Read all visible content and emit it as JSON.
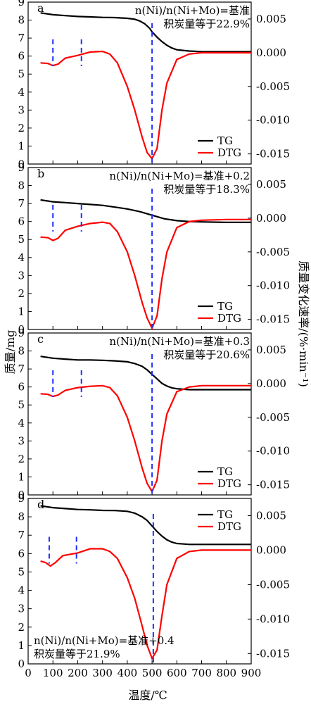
{
  "figure": {
    "xlabel": "温度/℃",
    "ylabel_left": "质量/mg",
    "ylabel_right": "质量变化速率/(%·min⁻¹)",
    "colors": {
      "tg": "#000000",
      "dtg": "#ff0000",
      "markers": "#1f2fff"
    }
  },
  "chart_data": [
    {
      "type": "line",
      "panel": "a",
      "annotation": [
        "n(Ni)/n(Ni+Mo)=基准",
        "积炭量等于22.9%"
      ],
      "annotation_position": "top-right",
      "legend": [
        "TG",
        "DTG"
      ],
      "legend_position": "bottom-right",
      "xlim": [
        0,
        900
      ],
      "ylim_left": [
        0,
        9
      ],
      "ylim_right": [
        -0.0165,
        0.0075
      ],
      "x_ticks": [
        0,
        100,
        200,
        300,
        400,
        500,
        600,
        700,
        800,
        900
      ],
      "y_ticks_left": [
        0,
        1,
        2,
        3,
        4,
        5,
        6,
        7,
        8,
        9
      ],
      "y_ticks_right": [
        "0.005",
        "0.000",
        "-0.005",
        "-0.010",
        "-0.015"
      ],
      "markers_x": [
        100,
        215,
        500
      ],
      "series": [
        {
          "name": "TG",
          "axis": "left",
          "x": [
            50,
            100,
            150,
            200,
            250,
            300,
            350,
            400,
            430,
            450,
            470,
            490,
            500,
            520,
            540,
            560,
            580,
            600,
            650,
            700,
            800,
            900
          ],
          "y": [
            8.4,
            8.3,
            8.25,
            8.2,
            8.18,
            8.15,
            8.14,
            8.1,
            8.05,
            7.95,
            7.8,
            7.55,
            7.35,
            7.05,
            6.8,
            6.6,
            6.45,
            6.35,
            6.28,
            6.25,
            6.25,
            6.25
          ]
        },
        {
          "name": "DTG",
          "axis": "right",
          "x": [
            50,
            80,
            100,
            120,
            150,
            200,
            250,
            300,
            330,
            360,
            400,
            430,
            460,
            480,
            500,
            520,
            540,
            560,
            600,
            650,
            700,
            800,
            900
          ],
          "y": [
            -0.0015,
            -0.0016,
            -0.0019,
            -0.0017,
            -0.0008,
            -0.0004,
            0.0001,
            0.0002,
            -0.0002,
            -0.0015,
            -0.005,
            -0.0085,
            -0.0125,
            -0.0148,
            -0.0157,
            -0.0142,
            -0.0085,
            -0.0045,
            -0.001,
            -0.0002,
            0.0,
            0.0,
            0.0
          ]
        }
      ]
    },
    {
      "type": "line",
      "panel": "b",
      "annotation": [
        "n(Ni)/n(Ni+Mo)=基准+0.2",
        "积炭量等于18.3%"
      ],
      "annotation_position": "top-right",
      "legend": [
        "TG",
        "DTG"
      ],
      "legend_position": "bottom-right",
      "xlim": [
        0,
        900
      ],
      "ylim_left": [
        0,
        9
      ],
      "ylim_right": [
        -0.0165,
        0.0075
      ],
      "x_ticks": [
        0,
        100,
        200,
        300,
        400,
        500,
        600,
        700,
        800,
        900
      ],
      "y_ticks_left": [
        0,
        1,
        2,
        3,
        4,
        5,
        6,
        7,
        8,
        9
      ],
      "y_ticks_right": [
        "0.005",
        "0.000",
        "-0.005",
        "-0.010",
        "-0.015"
      ],
      "markers_x": [
        100,
        215,
        500
      ],
      "series": [
        {
          "name": "TG",
          "axis": "left",
          "x": [
            50,
            100,
            150,
            200,
            250,
            300,
            350,
            400,
            450,
            500,
            550,
            600,
            650,
            700,
            800,
            900
          ],
          "y": [
            7.2,
            7.1,
            7.05,
            7.0,
            6.95,
            6.9,
            6.8,
            6.7,
            6.55,
            6.35,
            6.15,
            6.05,
            6.0,
            5.98,
            5.95,
            5.95
          ]
        },
        {
          "name": "DTG",
          "axis": "right",
          "x": [
            50,
            80,
            100,
            120,
            150,
            200,
            250,
            300,
            330,
            360,
            400,
            430,
            460,
            480,
            500,
            520,
            540,
            560,
            600,
            650,
            700,
            800,
            900
          ],
          "y": [
            -0.0028,
            -0.0029,
            -0.0033,
            -0.003,
            -0.0018,
            -0.0012,
            -0.0008,
            -0.0006,
            -0.0008,
            -0.002,
            -0.005,
            -0.0085,
            -0.0125,
            -0.0148,
            -0.0163,
            -0.0145,
            -0.009,
            -0.005,
            -0.0014,
            -0.0005,
            -0.0003,
            -0.0002,
            -0.0002
          ]
        }
      ]
    },
    {
      "type": "line",
      "panel": "c",
      "annotation": [
        "n(Ni)/n(Ni+Mo)=基准+0.3",
        "积炭量等于20.6%"
      ],
      "annotation_position": "top-right",
      "legend": [
        "TG",
        "DTG"
      ],
      "legend_position": "bottom-right",
      "xlim": [
        0,
        900
      ],
      "ylim_left": [
        0,
        9
      ],
      "ylim_right": [
        -0.0165,
        0.0075
      ],
      "x_ticks": [
        0,
        100,
        200,
        300,
        400,
        500,
        600,
        700,
        800,
        900
      ],
      "y_ticks_left": [
        0,
        1,
        2,
        3,
        4,
        5,
        6,
        7,
        8,
        9
      ],
      "y_ticks_right": [
        "0.005",
        "0.000",
        "-0.005",
        "-0.010",
        "-0.015"
      ],
      "markers_x": [
        100,
        215,
        500
      ],
      "series": [
        {
          "name": "TG",
          "axis": "left",
          "x": [
            50,
            100,
            150,
            200,
            250,
            300,
            350,
            400,
            430,
            460,
            480,
            500,
            520,
            540,
            560,
            580,
            600,
            650,
            700,
            800,
            900
          ],
          "y": [
            7.7,
            7.6,
            7.55,
            7.5,
            7.5,
            7.48,
            7.45,
            7.4,
            7.3,
            7.15,
            6.95,
            6.7,
            6.45,
            6.2,
            6.05,
            5.95,
            5.9,
            5.85,
            5.85,
            5.85,
            5.85
          ]
        },
        {
          "name": "DTG",
          "axis": "right",
          "x": [
            50,
            80,
            100,
            120,
            150,
            200,
            250,
            300,
            330,
            360,
            400,
            430,
            460,
            480,
            500,
            520,
            540,
            560,
            600,
            650,
            700,
            800,
            900
          ],
          "y": [
            -0.0015,
            -0.0016,
            -0.0019,
            -0.0017,
            -0.001,
            -0.0006,
            -0.0004,
            -0.0003,
            -0.0006,
            -0.0018,
            -0.005,
            -0.0085,
            -0.0125,
            -0.0148,
            -0.016,
            -0.0143,
            -0.0085,
            -0.0045,
            -0.0012,
            -0.0005,
            -0.0003,
            -0.0003,
            -0.0003
          ]
        }
      ]
    },
    {
      "type": "line",
      "panel": "d",
      "annotation": [
        "n(Ni)/n(Ni+Mo)=基准+0.4",
        "积炭量等于21.9%"
      ],
      "annotation_position": "bottom-left",
      "legend": [
        "TG",
        "DTG"
      ],
      "legend_position": "top-right",
      "xlim": [
        0,
        900
      ],
      "ylim_left": [
        0,
        9
      ],
      "ylim_right": [
        -0.0165,
        0.0075
      ],
      "x_ticks": [
        0,
        100,
        200,
        300,
        400,
        500,
        600,
        700,
        800,
        900
      ],
      "y_ticks_left": [
        0,
        1,
        2,
        3,
        4,
        5,
        6,
        7,
        8,
        9
      ],
      "y_ticks_right": [
        "0.005",
        "0.000",
        "-0.005",
        "-0.010",
        "-0.015"
      ],
      "x_tick_labels": [
        "0",
        "100",
        "200",
        "300",
        "400",
        "500",
        "600",
        "700",
        "800",
        "900"
      ],
      "markers_x": [
        85,
        195,
        505
      ],
      "series": [
        {
          "name": "TG",
          "axis": "left",
          "x": [
            50,
            100,
            150,
            200,
            250,
            300,
            350,
            400,
            430,
            460,
            480,
            500,
            520,
            540,
            560,
            580,
            600,
            650,
            700,
            800,
            900
          ],
          "y": [
            8.6,
            8.5,
            8.45,
            8.4,
            8.38,
            8.35,
            8.34,
            8.3,
            8.2,
            8.0,
            7.8,
            7.5,
            7.2,
            6.95,
            6.75,
            6.62,
            6.55,
            6.5,
            6.5,
            6.5,
            6.5
          ]
        },
        {
          "name": "DTG",
          "axis": "right",
          "x": [
            50,
            70,
            90,
            110,
            140,
            200,
            250,
            300,
            330,
            360,
            400,
            430,
            460,
            480,
            500,
            520,
            540,
            560,
            600,
            650,
            700,
            800,
            900
          ],
          "y": [
            -0.0016,
            -0.0018,
            -0.0023,
            -0.0018,
            -0.0008,
            -0.0004,
            0.0002,
            0.0002,
            -0.0002,
            -0.0012,
            -0.004,
            -0.007,
            -0.011,
            -0.0138,
            -0.0157,
            -0.0145,
            -0.0095,
            -0.005,
            -0.0012,
            -0.0002,
            0.0,
            0.0,
            0.0
          ]
        }
      ]
    }
  ]
}
